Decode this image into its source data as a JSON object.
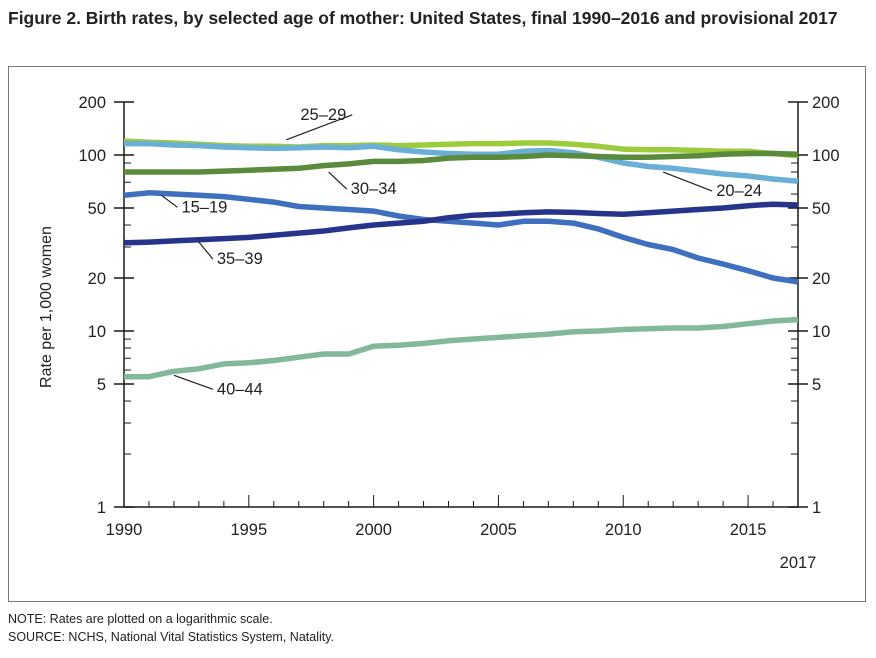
{
  "title": "Figure 2. Birth rates, by selected age of mother: United States, final 1990–2016 and provisional 2017",
  "notes": {
    "note": "NOTE: Rates are plotted on a logarithmic scale.",
    "source": "SOURCE: NCHS, National Vital Statistics System, Natality."
  },
  "chart_data": {
    "type": "line",
    "ylabel": "Rate per 1,000 women",
    "xlabel": "",
    "y_scale": "log",
    "ylim": [
      1,
      200
    ],
    "xlim": [
      1990,
      2017
    ],
    "y_ticks": [
      1,
      5,
      10,
      20,
      50,
      100,
      200
    ],
    "x_ticks": [
      1990,
      1995,
      2000,
      2005,
      2010,
      2015
    ],
    "x_extra_label": "2017",
    "grid": false,
    "x": [
      1990,
      1991,
      1992,
      1993,
      1994,
      1995,
      1996,
      1997,
      1998,
      1999,
      2000,
      2001,
      2002,
      2003,
      2004,
      2005,
      2006,
      2007,
      2008,
      2009,
      2010,
      2011,
      2012,
      2013,
      2014,
      2015,
      2016,
      2017
    ],
    "series": [
      {
        "name": "25–29",
        "color": "#9ccc3c",
        "values": [
          120,
          118,
          117,
          115,
          113,
          112,
          112,
          111,
          113,
          113,
          114,
          113,
          114,
          115,
          116,
          116,
          117,
          117,
          115,
          112,
          108,
          107,
          107,
          106,
          105,
          105,
          102,
          99
        ]
      },
      {
        "name": "20–24",
        "color": "#6aafd6",
        "values": [
          116,
          116,
          114,
          113,
          111,
          110,
          109,
          110,
          111,
          110,
          112,
          107,
          104,
          102,
          101,
          101,
          105,
          106,
          103,
          97,
          90,
          86,
          84,
          81,
          78,
          76,
          73,
          71
        ]
      },
      {
        "name": "30–34",
        "color": "#5a8a3c",
        "values": [
          80,
          80,
          80,
          80,
          81,
          82,
          83,
          84,
          87,
          89,
          92,
          92,
          93,
          96,
          97,
          97,
          98,
          100,
          99,
          98,
          97,
          97,
          98,
          99,
          101,
          102,
          102,
          101
        ]
      },
      {
        "name": "15–19",
        "color": "#3f6fbf",
        "values": [
          59,
          61,
          60,
          59,
          58,
          56,
          54,
          51,
          50,
          49,
          48,
          45,
          43,
          42,
          41,
          40,
          42,
          42,
          41,
          38,
          34,
          31,
          29,
          26,
          24,
          22,
          20,
          19
        ]
      },
      {
        "name": "35–39",
        "color": "#27348b",
        "values": [
          31.7,
          32,
          32.5,
          33,
          33.5,
          34,
          35,
          36,
          37,
          38.5,
          40,
          41,
          42,
          44,
          45.5,
          46,
          47,
          47.5,
          47.2,
          46.5,
          46,
          47,
          48,
          49,
          50,
          51.5,
          52.5,
          52
        ]
      },
      {
        "name": "40–44",
        "color": "#84b89a",
        "values": [
          5.5,
          5.5,
          5.9,
          6.1,
          6.5,
          6.6,
          6.8,
          7.1,
          7.4,
          7.4,
          8.2,
          8.3,
          8.5,
          8.8,
          9.0,
          9.2,
          9.4,
          9.6,
          9.9,
          10.0,
          10.2,
          10.3,
          10.4,
          10.4,
          10.6,
          11.0,
          11.4,
          11.6
        ]
      }
    ],
    "label_anchors": [
      {
        "series": "25–29",
        "at_x": 1996.5,
        "at_y": 122
      },
      {
        "series": "20–24",
        "at_x": 2011.6,
        "at_y": 80
      },
      {
        "series": "30–34",
        "at_x": 1998.2,
        "at_y": 80
      },
      {
        "series": "15–19",
        "at_x": 1991.5,
        "at_y": 59
      },
      {
        "series": "35–39",
        "at_x": 1993.0,
        "at_y": 32
      },
      {
        "series": "40–44",
        "at_x": 1992.0,
        "at_y": 5.6
      }
    ]
  }
}
